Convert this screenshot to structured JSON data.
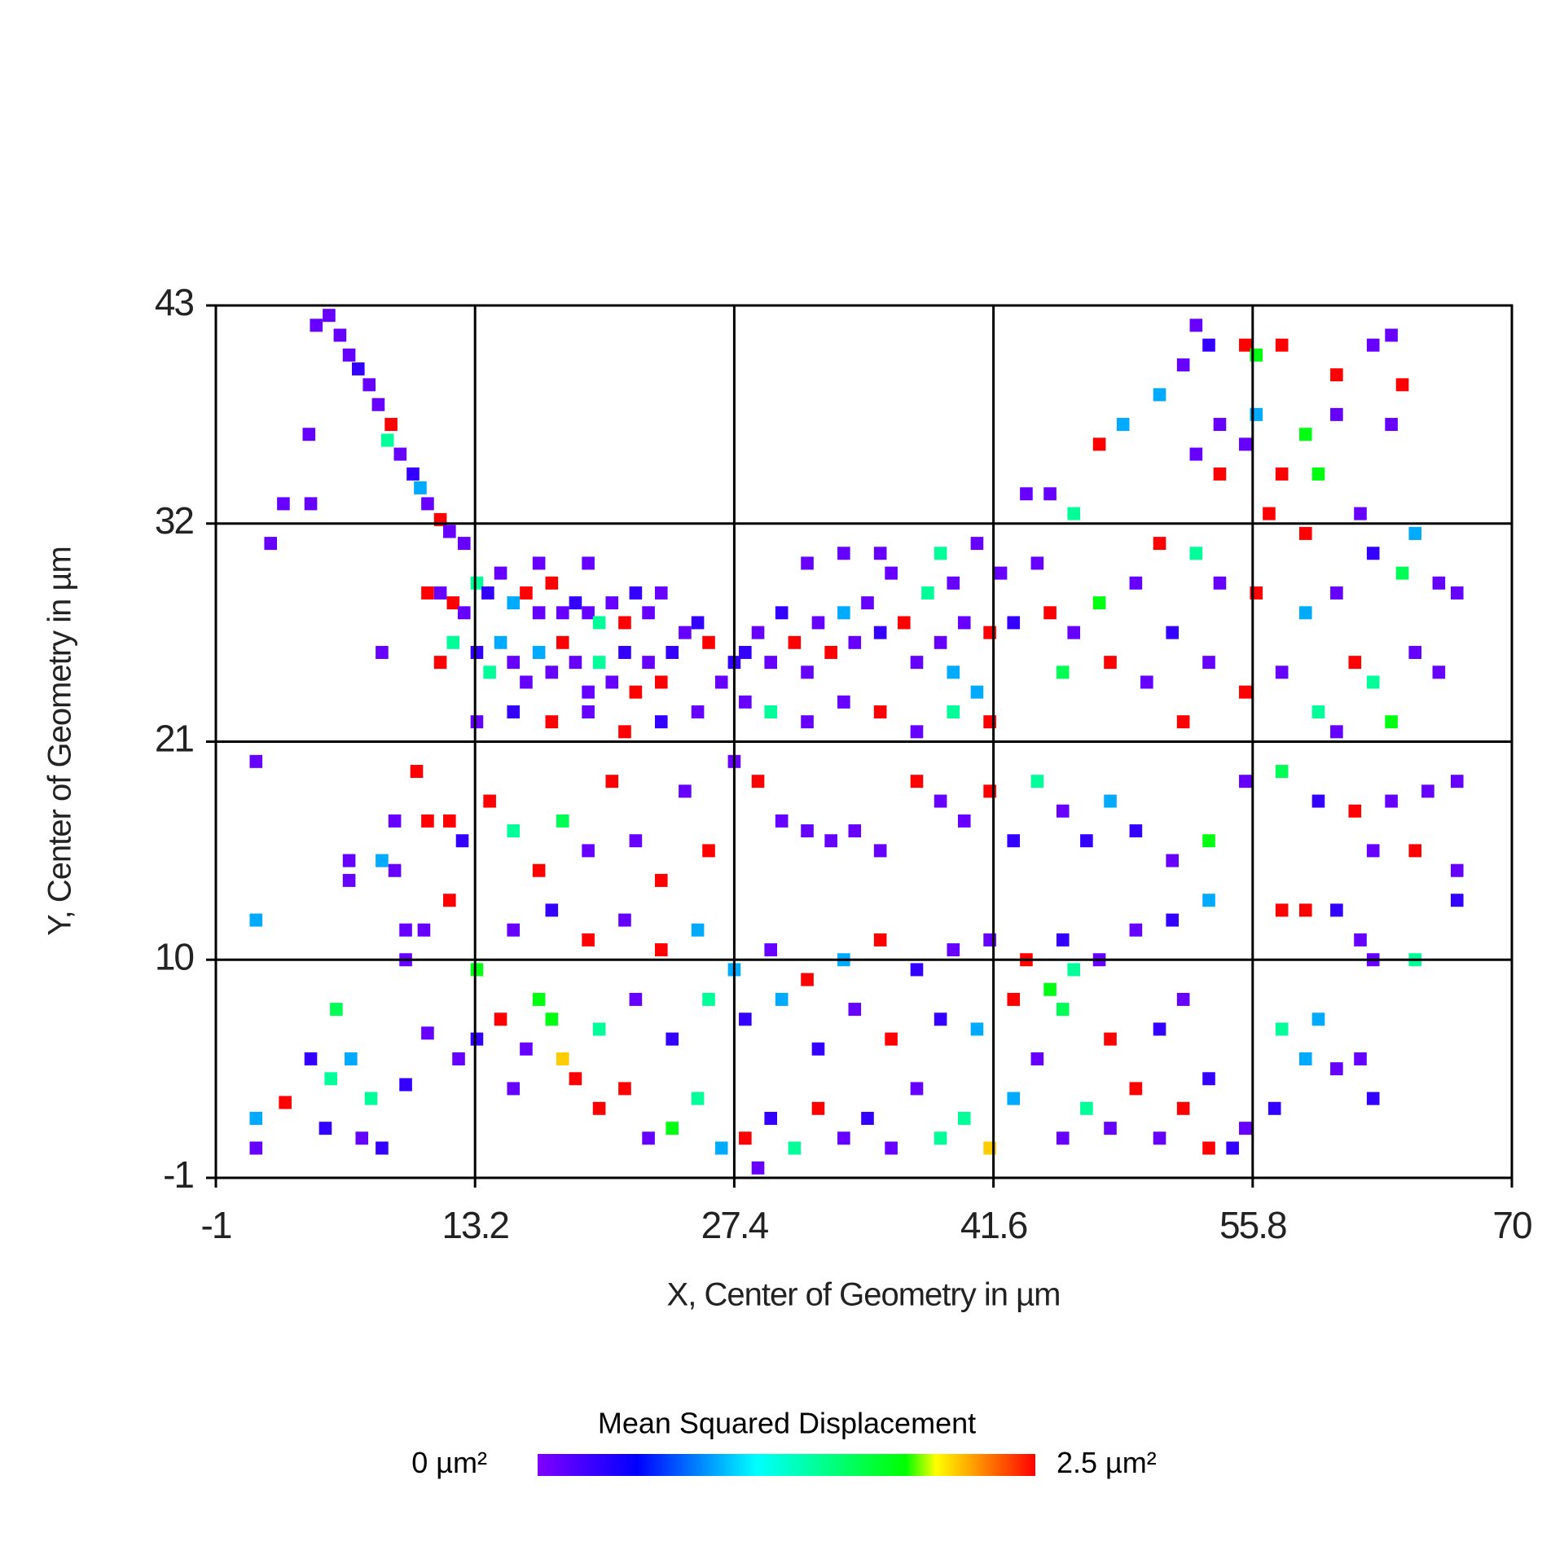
{
  "chart_data": {
    "type": "heatmap",
    "xlabel": "X, Center of Geometry in µm",
    "ylabel": "Y, Center of Geometry in µm",
    "xlim": [
      -1,
      70
    ],
    "ylim": [
      -1,
      43
    ],
    "xticks": [
      -1,
      13.2,
      27.4,
      41.6,
      55.8,
      70
    ],
    "yticks": [
      -1,
      10,
      21,
      32,
      43
    ],
    "grid": true,
    "colorbar": {
      "title": "Mean Squared Displacement",
      "ticks": [
        {
          "value": 0,
          "label": "0 µm²"
        },
        {
          "value": 2.5,
          "label": "2.5 µm²"
        }
      ],
      "colormap": [
        {
          "value": 0,
          "color": "#8000ff"
        },
        {
          "value": 0.5,
          "color": "#0000ff"
        },
        {
          "value": 1.1,
          "color": "#00ffff"
        },
        {
          "value": 1.85,
          "color": "#00ff00"
        },
        {
          "value": 2,
          "color": "#ffff00"
        },
        {
          "value": 2.5,
          "color": "#ff0000"
        }
      ]
    },
    "x": [
      4.5,
      5.2,
      5.8,
      6.3,
      6.8,
      7.4,
      7.9,
      8.6,
      8.4,
      9.1,
      9.8,
      10.2,
      10.6,
      11.3,
      11.8,
      12.6,
      2.7,
      4.2,
      2,
      4.1,
      1.2,
      1.2,
      1.2,
      1.2,
      2.8,
      4.2,
      5.6,
      5.3,
      6.4,
      5,
      7,
      7.5,
      8.1,
      9.4,
      10.6,
      9.4,
      9.4,
      10.4,
      8.1,
      6.3,
      8.8,
      10.6,
      11.8,
      12.5,
      11.8,
      12.3,
      6.3,
      8.8,
      10,
      8.1,
      10.6,
      11.3,
      12,
      12.6,
      13.3,
      13.9,
      14.6,
      15.3,
      16,
      16.7,
      17.4,
      18,
      18.7,
      19.4,
      20,
      20.7,
      21.4,
      22,
      22.7,
      23.4,
      11.3,
      12,
      13.3,
      14,
      14.6,
      15.3,
      16,
      16.7,
      17.4,
      18,
      18.7,
      19.4,
      20,
      20.7,
      21.4,
      22,
      22.7,
      23.4,
      24,
      24.7,
      25.4,
      26,
      26.7,
      27.4,
      28,
      28.7,
      29.4,
      30,
      30.7,
      31.4,
      32,
      32.7,
      33.4,
      34,
      34.7,
      35.4,
      36,
      36.7,
      37.4,
      38,
      38.7,
      39.4,
      40,
      40.7,
      41.4,
      42,
      42.7,
      28,
      29.4,
      31.4,
      33.4,
      35.4,
      37.4,
      39.4,
      41.4,
      13.3,
      15.3,
      17.4,
      19.4,
      21.4,
      23.4,
      25.4,
      16.7,
      19.4,
      31.4,
      33.4,
      35.4,
      38.7,
      40.7,
      39.4,
      43.4,
      44.7,
      46,
      47.4,
      48.7,
      50.7,
      52,
      52.7,
      53.4,
      55.4,
      56,
      57.4,
      60.4,
      62.4,
      63.4,
      64,
      63.4,
      60.4,
      58.7,
      56,
      54,
      52.7,
      54,
      55.4,
      57.4,
      59.4,
      58.7,
      56.7,
      61.7,
      62.4,
      64.7,
      66,
      67,
      64,
      60.4,
      58.7,
      56,
      54,
      52.7,
      50.7,
      49.4,
      47.4,
      46,
      44.7,
      44,
      45.4,
      48,
      50,
      51.4,
      53.4,
      55.4,
      57.4,
      59.4,
      61.4,
      62.4,
      64.7,
      66,
      63.4,
      60.4,
      52,
      14,
      15.3,
      16.7,
      18,
      19.4,
      20.7,
      22,
      23.4,
      24.7,
      26,
      27.4,
      28.7,
      30,
      31.4,
      32.7,
      34,
      35.4,
      37.4,
      38.7,
      40,
      41.4,
      42.7,
      44,
      45.4,
      46.7,
      48,
      49.4,
      51.4,
      53.4,
      55.4,
      57.4,
      59.4,
      61.4,
      63.4,
      65.4,
      67,
      62.4,
      64.7,
      67,
      67,
      57.4,
      58.7,
      60.4,
      61.7,
      62.4,
      64.7,
      53.4,
      51.4,
      49.4,
      47.4,
      45.4,
      43.4,
      41.4,
      39.4,
      37.4,
      35.4,
      33.4,
      31.4,
      29.4,
      27.4,
      25.4,
      23.4,
      21.4,
      19.4,
      17.4,
      15.3,
      13.3,
      14.6,
      16,
      17.4,
      18.7,
      20,
      21.4,
      22.7,
      24,
      25.4,
      26.7,
      28,
      29.4,
      30.7,
      32,
      33.4,
      34.7,
      36,
      37.4,
      38.7,
      40,
      41.4,
      42.7,
      44,
      45.4,
      46.7,
      48,
      49.4,
      50.7,
      52,
      53.4,
      54.7,
      55.4,
      53.4,
      57,
      58.7,
      60.4,
      61.7,
      62.4,
      59.4,
      57.4,
      50.7,
      48,
      45.4,
      42.7,
      40.7,
      38.7,
      36,
      34,
      32,
      30,
      28,
      26,
      24,
      22,
      20,
      18,
      16.7,
      15.3,
      28.7,
      13.3,
      44.7,
      46,
      52
    ],
    "y": [
      42,
      42.5,
      41.5,
      40.5,
      39.8,
      39,
      38,
      37,
      36.2,
      35.5,
      34.5,
      33.8,
      33,
      32.2,
      31.6,
      31,
      33,
      33,
      31,
      36.5,
      20,
      12,
      0.5,
      2,
      2.8,
      5,
      7.5,
      4,
      5,
      1.5,
      1,
      3,
      0.5,
      3.7,
      6.3,
      10,
      11.5,
      11.5,
      15,
      14,
      17,
      17,
      17,
      16,
      13,
      5,
      15,
      14.5,
      19.5,
      25.5,
      28.5,
      28.5,
      28,
      27.5,
      29,
      28.5,
      29.5,
      28,
      28.5,
      27.5,
      29,
      27.5,
      28,
      27.5,
      27,
      28,
      27,
      28.5,
      27.5,
      28.5,
      25,
      26,
      25.5,
      24.5,
      26,
      25,
      24,
      25.5,
      24.5,
      26,
      25,
      23.5,
      25,
      24,
      25.5,
      23.5,
      25,
      24,
      25.5,
      26.5,
      27,
      26,
      24,
      25,
      25.5,
      26.5,
      25,
      27.5,
      26,
      24.5,
      27,
      25.5,
      27.5,
      26,
      28,
      26.5,
      29.5,
      27,
      25,
      28.5,
      26,
      24.5,
      27,
      23.5,
      26.5,
      29.5,
      27,
      23,
      22.5,
      22,
      23,
      22.5,
      21.5,
      22.5,
      22,
      22,
      22.5,
      22,
      22.5,
      21.5,
      22,
      22.5,
      30,
      30,
      30,
      30.5,
      30.5,
      30.5,
      31,
      29,
      33.5,
      33.5,
      32.5,
      36,
      37,
      38.5,
      40,
      42,
      41,
      41,
      40.5,
      41,
      39.5,
      41,
      41.5,
      39,
      37,
      37.5,
      36.5,
      37.5,
      37,
      35.5,
      34.5,
      36,
      34.5,
      34.5,
      31.5,
      32.5,
      32.5,
      30.5,
      31.5,
      29,
      28.5,
      29.5,
      28.5,
      27.5,
      28.5,
      29,
      30.5,
      31,
      29,
      28,
      26.5,
      27.5,
      30,
      24.5,
      25,
      24,
      26.5,
      25,
      23.5,
      24.5,
      22.5,
      25,
      24,
      25.5,
      24.5,
      22,
      21.5,
      22,
      18,
      16.5,
      14.5,
      17,
      15.5,
      19,
      16,
      14,
      18.5,
      15.5,
      20,
      19,
      17,
      16.5,
      16,
      16.5,
      15.5,
      19,
      18,
      17,
      18.5,
      16,
      19,
      17.5,
      16,
      18,
      16.5,
      15,
      16,
      19,
      19.5,
      18,
      17.5,
      18,
      18.5,
      19,
      15.5,
      15.5,
      14.5,
      13,
      12.5,
      12.5,
      12.5,
      11,
      10,
      10,
      13,
      12,
      11.5,
      10,
      11,
      10,
      11,
      10.5,
      9.5,
      11,
      10,
      9,
      10.5,
      9.5,
      11.5,
      10.5,
      12,
      11,
      12.5,
      11.5,
      9.5,
      7,
      5.5,
      7,
      4,
      2.5,
      3.5,
      1,
      1.5,
      3,
      0.5,
      1,
      2,
      0.5,
      2.5,
      1,
      2,
      0.5,
      3.5,
      1,
      2,
      0.5,
      3,
      5,
      1,
      2.5,
      1.5,
      3.5,
      1,
      2.5,
      0.5,
      0.5,
      1.5,
      4,
      2.5,
      5,
      4.5,
      5,
      3,
      7,
      6.5,
      6.5,
      6,
      7.5,
      8,
      6.5,
      7,
      6,
      7.5,
      5.5,
      8,
      7,
      8,
      6,
      8,
      6.5,
      5,
      8,
      3.5,
      -0.5,
      6,
      8.5,
      9.5,
      8
    ],
    "values": [
      0.1,
      0.1,
      0.1,
      0.1,
      0.3,
      0.1,
      0.1,
      2.5,
      1.4,
      0.1,
      0.3,
      0.9,
      0.1,
      2.5,
      0.1,
      0.1,
      0.1,
      0.1,
      0.1,
      0.1,
      0.1,
      0.9,
      0.1,
      0.9,
      2.5,
      0.3,
      1.6,
      1.4,
      0.9,
      0.3,
      0.1,
      1.4,
      0.3,
      0.3,
      0.1,
      0.1,
      0.1,
      0.1,
      0.9,
      0.1,
      0.1,
      2.5,
      2.5,
      0.3,
      2.5,
      0.1,
      0.1,
      0.1,
      2.5,
      0.1,
      2.5,
      0.1,
      2.5,
      0.1,
      1.4,
      0.3,
      0.1,
      0.9,
      2.5,
      0.1,
      2.5,
      0.1,
      0.3,
      0.1,
      1.4,
      0.1,
      2.5,
      0.3,
      0.1,
      0.1,
      2.5,
      1.4,
      0.3,
      1.4,
      0.9,
      0.1,
      0.1,
      0.9,
      0.1,
      2.5,
      0.1,
      0.1,
      1.4,
      0.1,
      0.3,
      2.5,
      0.1,
      2.5,
      0.3,
      0.1,
      0.3,
      2.5,
      0.1,
      0.3,
      0.3,
      0.1,
      0.1,
      0.3,
      2.5,
      0.1,
      0.1,
      2.5,
      0.9,
      0.1,
      0.1,
      0.3,
      0.1,
      2.5,
      0.1,
      1.4,
      0.1,
      0.9,
      0.1,
      0.9,
      2.5,
      0.1,
      0.3,
      0.1,
      1.4,
      0.1,
      0.1,
      2.5,
      0.1,
      1.4,
      2.5,
      0.1,
      0.3,
      2.5,
      0.1,
      2.5,
      0.3,
      0.1,
      0.1,
      0.1,
      0.1,
      0.1,
      0.1,
      1.4,
      0.1,
      0.1,
      0.1,
      0.1,
      1.4,
      2.5,
      0.9,
      0.9,
      0.1,
      0.1,
      0.3,
      2.5,
      1.8,
      2.5,
      2.5,
      0.1,
      0.1,
      2.5,
      0.1,
      0.1,
      1.8,
      0.9,
      0.1,
      0.1,
      2.5,
      0.1,
      2.5,
      1.8,
      2.5,
      2.5,
      0.1,
      0.3,
      0.9,
      0.1,
      0.1,
      1.6,
      0.1,
      0.9,
      2.5,
      0.1,
      1.4,
      2.5,
      0.1,
      1.8,
      0.1,
      2.5,
      0.1,
      1.6,
      2.5,
      0.1,
      0.3,
      0.1,
      2.5,
      0.1,
      1.4,
      2.5,
      1.4,
      0.1,
      0.1,
      1.8,
      0.1,
      2.5,
      2.5,
      1.4,
      2.5,
      1.6,
      0.1,
      2.5,
      0.1,
      2.5,
      0.1,
      2.5,
      0.1,
      2.5,
      0.1,
      0.1,
      0.1,
      0.1,
      0.1,
      2.5,
      0.1,
      0.1,
      2.5,
      0.3,
      1.4,
      0.1,
      0.3,
      0.9,
      0.3,
      0.1,
      1.8,
      0.1,
      1.6,
      0.3,
      2.5,
      0.1,
      0.1,
      0.1,
      0.1,
      2.5,
      0.1,
      0.3,
      2.5,
      2.5,
      0.3,
      0.1,
      0.1,
      1.4,
      0.9,
      0.3,
      0.1,
      0.1,
      0.3,
      2.5,
      0.1,
      0.1,
      0.3,
      2.5,
      0.9,
      2.5,
      0.1,
      0.9,
      0.9,
      2.5,
      0.1,
      2.5,
      0.3,
      0.1,
      1.8,
      2.5,
      0.1,
      1.8,
      2.5,
      2.5,
      2.5,
      0.1,
      1.8,
      1.4,
      0.9,
      2.5,
      0.3,
      1.4,
      2.5,
      0.1,
      0.3,
      0.1,
      0.1,
      1.4,
      1.4,
      2.1,
      0.9,
      0.1,
      0.1,
      1.4,
      0.1,
      2.5,
      0.1,
      2.5,
      2.5,
      0.3,
      0.1,
      0.3,
      0.3,
      0.9,
      0.1,
      0.1,
      0.3,
      0.9,
      1.4,
      0.3,
      2.5,
      1.6,
      2.5,
      0.9,
      0.3,
      2.5,
      0.1,
      0.3,
      0.9,
      0.3,
      1.4,
      0.3,
      0.1,
      1.4,
      2.1,
      1.8,
      0.1,
      0.1,
      0.3,
      1.8,
      1.4,
      0.1
    ]
  }
}
